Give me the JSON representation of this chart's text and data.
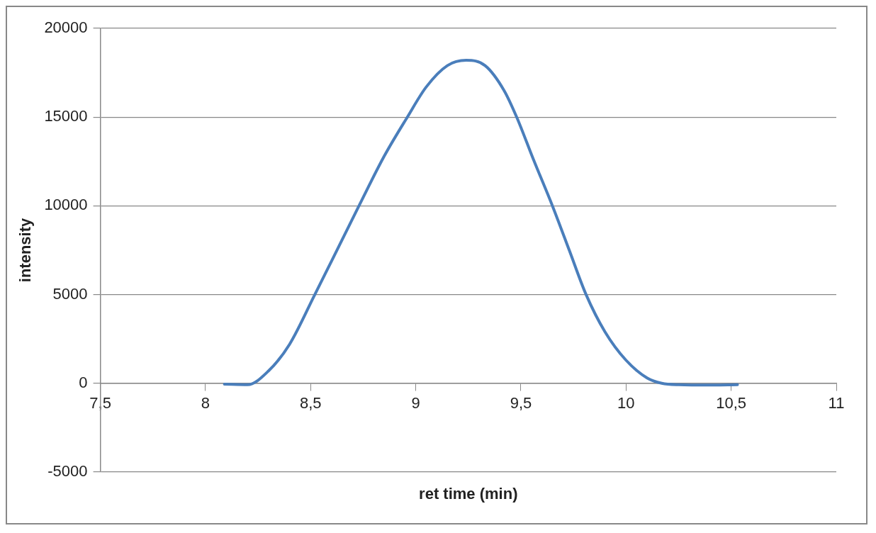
{
  "chart_data": {
    "type": "line",
    "xlabel": "ret time (min)",
    "ylabel": "intensity",
    "xlim": [
      7.5,
      11
    ],
    "xticks": [
      {
        "value": 7.5,
        "label": "7,5"
      },
      8,
      {
        "value": 8.5,
        "label": "8,5"
      },
      9,
      {
        "value": 9.5,
        "label": "9,5"
      },
      10,
      {
        "value": 10.5,
        "label": "10,5"
      },
      11
    ],
    "ylim": [
      -5000,
      20000
    ],
    "yticks": [
      -5000,
      0,
      5000,
      10000,
      15000,
      20000
    ],
    "grid": "y",
    "legend": false,
    "marker": "none",
    "line_style": "solid",
    "series": [
      {
        "color": "#4a7ebb",
        "x": [
          8.09,
          8.2,
          8.3,
          8.4,
          8.52,
          8.6,
          8.73,
          8.85,
          8.96,
          9.05,
          9.15,
          9.24,
          9.33,
          9.42,
          9.48,
          9.56,
          9.65,
          9.73,
          9.81,
          9.9,
          10.0,
          10.1,
          10.17,
          10.25,
          10.4,
          10.53
        ],
        "values": [
          -50,
          -80,
          700,
          2200,
          5000,
          6900,
          10000,
          12800,
          15000,
          16700,
          17900,
          18200,
          17900,
          16500,
          15000,
          12600,
          10000,
          7500,
          5000,
          2900,
          1300,
          300,
          0,
          -80,
          -100,
          -80
        ]
      }
    ]
  }
}
